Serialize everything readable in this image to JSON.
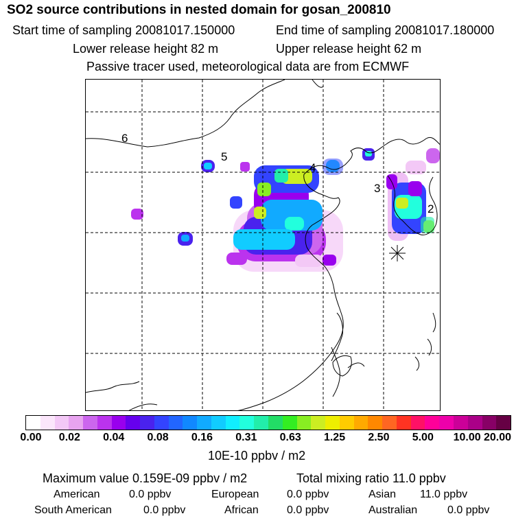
{
  "header": {
    "title": "SO2 source contributions in nested domain for gosan_200810",
    "start_label": "Start time of sampling 20081017.150000",
    "end_label": "End time of sampling 20081017.180000",
    "lower_label": "Lower release height   82 m",
    "upper_label": "Upper release height   62 m",
    "note": "Passive tracer used, meteorological data are from ECMWF"
  },
  "map": {
    "region_labels": [
      "6",
      "5",
      "4",
      "3",
      "2"
    ],
    "receptor_marker": "receptor-star-icon"
  },
  "colorbar": {
    "ticks": [
      "0.00",
      "0.02",
      "0.04",
      "0.08",
      "0.16",
      "0.31",
      "0.63",
      "1.25",
      "2.50",
      "5.00",
      "10.00",
      "20.00"
    ],
    "unit": "10E-10 ppbv / m2",
    "colors": [
      "#ffffff",
      "#fbe6fb",
      "#f3c8f6",
      "#e8a4f0",
      "#cc66ee",
      "#bb33ee",
      "#9900ee",
      "#6600ee",
      "#4a22ee",
      "#3344ff",
      "#2266ff",
      "#1188ff",
      "#11aaff",
      "#11ccff",
      "#11eeff",
      "#22ffdd",
      "#22eeaa",
      "#22dd66",
      "#33ee22",
      "#88ee22",
      "#ccee22",
      "#eeee00",
      "#ffcc00",
      "#ffaa00",
      "#ff8800",
      "#ff6622",
      "#ff3322",
      "#ff1166",
      "#ff0099",
      "#ee00aa",
      "#cc0099",
      "#aa0088",
      "#880066",
      "#660044"
    ]
  },
  "footer": {
    "max_label": "Maximum value  0.159E-09 ppbv / m2",
    "total_label": "Total mixing ratio       11.0 ppbv",
    "american": "American",
    "american_val": "0.0 ppbv",
    "european": "European",
    "european_val": "0.0 ppbv",
    "asian": "Asian",
    "asian_val": "11.0 ppbv",
    "south_american": "South American",
    "south_american_val": "0.0 ppbv",
    "african": "African",
    "african_val": "0.0 ppbv",
    "australian": "Australian",
    "australian_val": "0.0 ppbv"
  }
}
